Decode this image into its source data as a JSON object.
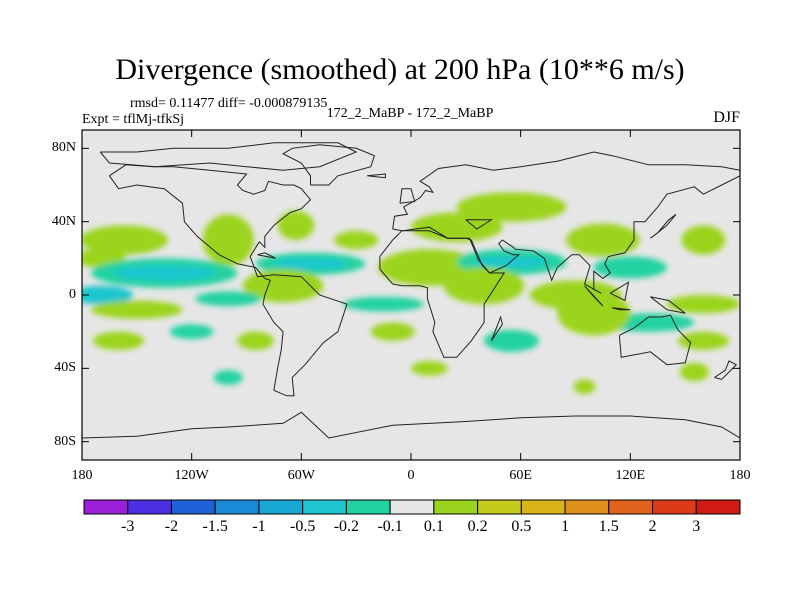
{
  "chart_data": {
    "type": "heatmap",
    "title": "Divergence (smoothed) at 200 hPa (10**6 m/s)",
    "stats_line": "rmsd= 0.11477 diff= -0.000879135",
    "left_label": "Expt = tflMj-tfkSj",
    "center_label": "172_2_MaBP - 172_2_MaBP",
    "right_label": "DJF",
    "x_ticks": [
      {
        "lon": -180,
        "label": "180"
      },
      {
        "lon": -120,
        "label": "120W"
      },
      {
        "lon": -60,
        "label": "60W"
      },
      {
        "lon": 0,
        "label": "0"
      },
      {
        "lon": 60,
        "label": "60E"
      },
      {
        "lon": 120,
        "label": "120E"
      },
      {
        "lon": 180,
        "label": "180"
      }
    ],
    "y_ticks": [
      {
        "lat": 80,
        "label": "80N"
      },
      {
        "lat": 40,
        "label": "40N"
      },
      {
        "lat": 0,
        "label": "0"
      },
      {
        "lat": -40,
        "label": "40S"
      },
      {
        "lat": -80,
        "label": "80S"
      }
    ],
    "xlim": [
      -180,
      180
    ],
    "ylim": [
      -90,
      90
    ],
    "colorbar": {
      "levels": [
        "-3",
        "-2",
        "-1.5",
        "-1",
        "-0.5",
        "-0.2",
        "-0.1",
        "0.1",
        "0.2",
        "0.5",
        "1",
        "1.5",
        "2",
        "3"
      ],
      "colors": [
        "#9a1fd9",
        "#4a2fe0",
        "#1f62d8",
        "#1a8ad8",
        "#19a7d6",
        "#1fc6cf",
        "#22d2a2",
        "#e6e6e6",
        "#9bd41e",
        "#c4cc1b",
        "#d9b51a",
        "#e0901c",
        "#e0621c",
        "#dd3a18",
        "#d11a14"
      ]
    },
    "fields": [
      {
        "lon": -157,
        "lat": 30,
        "rx": 14,
        "ry": 5,
        "color": "#c4cc1b"
      },
      {
        "lon": -157,
        "lat": 30,
        "rx": 24,
        "ry": 8,
        "color": "#9bd41e"
      },
      {
        "lon": -170,
        "lat": 20,
        "rx": 14,
        "ry": 5,
        "color": "#9bd41e"
      },
      {
        "lon": -100,
        "lat": 30,
        "rx": 10,
        "ry": 10,
        "color": "#c4cc1b"
      },
      {
        "lon": -100,
        "lat": 30,
        "rx": 14,
        "ry": 14,
        "color": "#9bd41e"
      },
      {
        "lon": -30,
        "lat": 30,
        "rx": 12,
        "ry": 5,
        "color": "#9bd41e"
      },
      {
        "lon": -63,
        "lat": 38,
        "rx": 10,
        "ry": 8,
        "color": "#9bd41e"
      },
      {
        "lon": 55,
        "lat": 48,
        "rx": 30,
        "ry": 8,
        "color": "#9bd41e"
      },
      {
        "lon": 25,
        "lat": 37,
        "rx": 25,
        "ry": 8,
        "color": "#9bd41e"
      },
      {
        "lon": 105,
        "lat": 30,
        "rx": 12,
        "ry": 6,
        "color": "#c4cc1b"
      },
      {
        "lon": 105,
        "lat": 30,
        "rx": 20,
        "ry": 9,
        "color": "#9bd41e"
      },
      {
        "lon": 160,
        "lat": 30,
        "rx": 12,
        "ry": 8,
        "color": "#9bd41e"
      },
      {
        "lon": -170,
        "lat": 0,
        "rx": 18,
        "ry": 5,
        "color": "#1fc6cf"
      },
      {
        "lon": -135,
        "lat": 12,
        "rx": 40,
        "ry": 8,
        "color": "#22d2a2"
      },
      {
        "lon": -135,
        "lat": 12,
        "rx": 28,
        "ry": 4,
        "color": "#1fc6cf"
      },
      {
        "lon": -55,
        "lat": 17,
        "rx": 30,
        "ry": 6,
        "color": "#22d2a2"
      },
      {
        "lon": -55,
        "lat": 17,
        "rx": 20,
        "ry": 3,
        "color": "#1fc6cf"
      },
      {
        "lon": -70,
        "lat": 5,
        "rx": 14,
        "ry": 6,
        "color": "#c4cc1b"
      },
      {
        "lon": -70,
        "lat": 5,
        "rx": 22,
        "ry": 9,
        "color": "#9bd41e"
      },
      {
        "lon": 10,
        "lat": 15,
        "rx": 18,
        "ry": 7,
        "color": "#c4cc1b"
      },
      {
        "lon": 10,
        "lat": 15,
        "rx": 28,
        "ry": 10,
        "color": "#9bd41e"
      },
      {
        "lon": 55,
        "lat": 18,
        "rx": 30,
        "ry": 7,
        "color": "#22d2a2"
      },
      {
        "lon": 55,
        "lat": 18,
        "rx": 20,
        "ry": 3,
        "color": "#1fc6cf"
      },
      {
        "lon": 120,
        "lat": 15,
        "rx": 20,
        "ry": 6,
        "color": "#22d2a2"
      },
      {
        "lon": 40,
        "lat": 5,
        "rx": 14,
        "ry": 7,
        "color": "#c4cc1b"
      },
      {
        "lon": 40,
        "lat": 5,
        "rx": 22,
        "ry": 10,
        "color": "#9bd41e"
      },
      {
        "lon": 90,
        "lat": 0,
        "rx": 18,
        "ry": 6,
        "color": "#c4cc1b"
      },
      {
        "lon": 90,
        "lat": 0,
        "rx": 25,
        "ry": 8,
        "color": "#9bd41e"
      },
      {
        "lon": 160,
        "lat": -5,
        "rx": 20,
        "ry": 5,
        "color": "#9bd41e"
      },
      {
        "lon": -150,
        "lat": -8,
        "rx": 25,
        "ry": 5,
        "color": "#9bd41e"
      },
      {
        "lon": -100,
        "lat": -2,
        "rx": 18,
        "ry": 4,
        "color": "#22d2a2"
      },
      {
        "lon": -15,
        "lat": -5,
        "rx": 22,
        "ry": 4,
        "color": "#22d2a2"
      },
      {
        "lon": 130,
        "lat": -15,
        "rx": 25,
        "ry": 5,
        "color": "#22d2a2"
      },
      {
        "lon": -10,
        "lat": -20,
        "rx": 12,
        "ry": 5,
        "color": "#9bd41e"
      },
      {
        "lon": 55,
        "lat": -25,
        "rx": 15,
        "ry": 6,
        "color": "#22d2a2"
      },
      {
        "lon": 100,
        "lat": -10,
        "rx": 14,
        "ry": 8,
        "color": "#c4cc1b"
      },
      {
        "lon": 100,
        "lat": -10,
        "rx": 20,
        "ry": 12,
        "color": "#9bd41e"
      },
      {
        "lon": 160,
        "lat": -25,
        "rx": 14,
        "ry": 5,
        "color": "#9bd41e"
      },
      {
        "lon": -160,
        "lat": -25,
        "rx": 14,
        "ry": 5,
        "color": "#9bd41e"
      },
      {
        "lon": -120,
        "lat": -20,
        "rx": 12,
        "ry": 4,
        "color": "#22d2a2"
      },
      {
        "lon": -85,
        "lat": -25,
        "rx": 10,
        "ry": 5,
        "color": "#9bd41e"
      },
      {
        "lon": -100,
        "lat": -45,
        "rx": 8,
        "ry": 4,
        "color": "#22d2a2"
      },
      {
        "lon": 10,
        "lat": -40,
        "rx": 10,
        "ry": 4,
        "color": "#9bd41e"
      },
      {
        "lon": 95,
        "lat": -50,
        "rx": 6,
        "ry": 4,
        "color": "#9bd41e"
      },
      {
        "lon": 155,
        "lat": -42,
        "rx": 8,
        "ry": 5,
        "color": "#9bd41e"
      }
    ],
    "coastlines": [
      [
        [
          -170,
          78
        ],
        [
          -150,
          78
        ],
        [
          -130,
          80
        ],
        [
          -100,
          80
        ],
        [
          -75,
          83
        ],
        [
          -40,
          83
        ],
        [
          -30,
          78
        ],
        [
          -50,
          70
        ],
        [
          -70,
          68
        ],
        [
          -90,
          70
        ],
        [
          -110,
          72
        ],
        [
          -140,
          70
        ],
        [
          -165,
          72
        ],
        [
          -170,
          78
        ]
      ],
      [
        [
          -165,
          65
        ],
        [
          -160,
          58
        ],
        [
          -150,
          60
        ],
        [
          -135,
          58
        ],
        [
          -125,
          50
        ],
        [
          -124,
          40
        ],
        [
          -117,
          32
        ],
        [
          -105,
          22
        ],
        [
          -95,
          17
        ],
        [
          -85,
          15
        ],
        [
          -80,
          9
        ],
        [
          -77,
          8
        ],
        [
          -80,
          0
        ],
        [
          -81,
          -5
        ],
        [
          -75,
          -15
        ],
        [
          -70,
          -20
        ],
        [
          -71,
          -30
        ],
        [
          -73,
          -40
        ],
        [
          -75,
          -52
        ],
        [
          -68,
          -55
        ],
        [
          -64,
          -55
        ],
        [
          -65,
          -45
        ],
        [
          -58,
          -38
        ],
        [
          -48,
          -26
        ],
        [
          -40,
          -20
        ],
        [
          -35,
          -5
        ],
        [
          -50,
          0
        ],
        [
          -60,
          10
        ],
        [
          -75,
          11
        ],
        [
          -84,
          10
        ],
        [
          -88,
          21
        ],
        [
          -83,
          29
        ],
        [
          -80,
          26
        ],
        [
          -80,
          32
        ],
        [
          -75,
          38
        ],
        [
          -70,
          42
        ],
        [
          -66,
          45
        ],
        [
          -60,
          47
        ],
        [
          -55,
          52
        ],
        [
          -60,
          58
        ],
        [
          -64,
          60
        ],
        [
          -70,
          60
        ],
        [
          -78,
          62
        ],
        [
          -80,
          57
        ],
        [
          -86,
          55
        ],
        [
          -92,
          57
        ],
        [
          -95,
          60
        ],
        [
          -90,
          66
        ],
        [
          -110,
          68
        ],
        [
          -130,
          70
        ],
        [
          -141,
          70
        ],
        [
          -156,
          71
        ],
        [
          -165,
          65
        ]
      ],
      [
        [
          -10,
          36
        ],
        [
          -9,
          43
        ],
        [
          -2,
          44
        ],
        [
          -4,
          48
        ],
        [
          5,
          53
        ],
        [
          8,
          57
        ],
        [
          12,
          56
        ],
        [
          10,
          59
        ],
        [
          5,
          62
        ],
        [
          15,
          69
        ],
        [
          30,
          71
        ],
        [
          45,
          68
        ],
        [
          60,
          70
        ],
        [
          80,
          73
        ],
        [
          100,
          78
        ],
        [
          110,
          76
        ],
        [
          130,
          71
        ],
        [
          150,
          71
        ],
        [
          170,
          70
        ],
        [
          180,
          68
        ],
        [
          180,
          65
        ],
        [
          170,
          60
        ],
        [
          160,
          55
        ],
        [
          155,
          59
        ],
        [
          140,
          55
        ],
        [
          135,
          48
        ],
        [
          128,
          40
        ],
        [
          122,
          40
        ],
        [
          122,
          30
        ],
        [
          117,
          23
        ],
        [
          108,
          21
        ],
        [
          106,
          17
        ],
        [
          109,
          12
        ],
        [
          105,
          9
        ],
        [
          100,
          13
        ],
        [
          100,
          3
        ],
        [
          104,
          1
        ],
        [
          95,
          6
        ],
        [
          98,
          16
        ],
        [
          92,
          22
        ],
        [
          88,
          22
        ],
        [
          80,
          15
        ],
        [
          77,
          8
        ],
        [
          73,
          20
        ],
        [
          67,
          24
        ],
        [
          57,
          25
        ],
        [
          56,
          26
        ],
        [
          50,
          30
        ],
        [
          48,
          28
        ],
        [
          51,
          24
        ],
        [
          56,
          22
        ],
        [
          59,
          22
        ],
        [
          52,
          16
        ],
        [
          43,
          12
        ],
        [
          39,
          16
        ],
        [
          33,
          30
        ],
        [
          30,
          31
        ],
        [
          20,
          31
        ],
        [
          10,
          35
        ],
        [
          -5,
          35
        ],
        [
          -10,
          36
        ]
      ],
      [
        [
          -17,
          21
        ],
        [
          -17,
          14
        ],
        [
          -10,
          6
        ],
        [
          -5,
          5
        ],
        [
          5,
          5
        ],
        [
          9,
          4
        ],
        [
          9,
          -2
        ],
        [
          13,
          -15
        ],
        [
          12,
          -20
        ],
        [
          18,
          -34
        ],
        [
          25,
          -34
        ],
        [
          33,
          -25
        ],
        [
          40,
          -15
        ],
        [
          40,
          -5
        ],
        [
          51,
          12
        ],
        [
          43,
          12
        ],
        [
          37,
          19
        ],
        [
          32,
          31
        ],
        [
          20,
          31
        ],
        [
          10,
          37
        ],
        [
          -5,
          35
        ],
        [
          -10,
          30
        ],
        [
          -17,
          21
        ]
      ],
      [
        [
          114,
          -22
        ],
        [
          122,
          -18
        ],
        [
          130,
          -12
        ],
        [
          137,
          -12
        ],
        [
          142,
          -11
        ],
        [
          146,
          -19
        ],
        [
          153,
          -26
        ],
        [
          150,
          -37
        ],
        [
          140,
          -38
        ],
        [
          131,
          -31
        ],
        [
          115,
          -34
        ],
        [
          114,
          -22
        ]
      ],
      [
        [
          -180,
          -78
        ],
        [
          -150,
          -77
        ],
        [
          -120,
          -73
        ],
        [
          -100,
          -72
        ],
        [
          -70,
          -70
        ],
        [
          -60,
          -64
        ],
        [
          -45,
          -78
        ],
        [
          -10,
          -71
        ],
        [
          30,
          -69
        ],
        [
          60,
          -67
        ],
        [
          90,
          -66
        ],
        [
          120,
          -66
        ],
        [
          150,
          -68
        ],
        [
          170,
          -72
        ],
        [
          180,
          -78
        ]
      ],
      [
        [
          -55,
          60
        ],
        [
          -45,
          60
        ],
        [
          -40,
          65
        ],
        [
          -22,
          70
        ],
        [
          -20,
          76
        ],
        [
          -30,
          80
        ],
        [
          -50,
          82
        ],
        [
          -65,
          80
        ],
        [
          -70,
          77
        ],
        [
          -60,
          72
        ],
        [
          -55,
          65
        ],
        [
          -55,
          60
        ]
      ],
      [
        [
          -6,
          50
        ],
        [
          2,
          51
        ],
        [
          0,
          58
        ],
        [
          -5,
          58
        ],
        [
          -6,
          50
        ]
      ],
      [
        [
          131,
          31
        ],
        [
          135,
          34
        ],
        [
          141,
          41
        ],
        [
          145,
          44
        ],
        [
          140,
          38
        ],
        [
          135,
          34
        ],
        [
          131,
          31
        ]
      ],
      [
        [
          95,
          5
        ],
        [
          105,
          -6
        ],
        [
          100,
          -1
        ],
        [
          95,
          5
        ]
      ],
      [
        [
          110,
          -7
        ],
        [
          114,
          -8
        ],
        [
          120,
          -8
        ],
        [
          110,
          -7
        ]
      ],
      [
        [
          109,
          1
        ],
        [
          119,
          7
        ],
        [
          117,
          -3
        ],
        [
          109,
          1
        ]
      ],
      [
        [
          131,
          -1
        ],
        [
          141,
          -3
        ],
        [
          150,
          -10
        ],
        [
          140,
          -8
        ],
        [
          131,
          -1
        ]
      ],
      [
        [
          44,
          -25
        ],
        [
          50,
          -16
        ],
        [
          49,
          -12
        ],
        [
          44,
          -25
        ]
      ],
      [
        [
          166,
          -45
        ],
        [
          172,
          -41
        ],
        [
          174,
          -36
        ],
        [
          178,
          -38
        ],
        [
          170,
          -46
        ],
        [
          166,
          -45
        ]
      ],
      [
        [
          -24,
          65
        ],
        [
          -14,
          66
        ],
        [
          -14,
          64
        ],
        [
          -24,
          65
        ]
      ],
      [
        [
          -84,
          22
        ],
        [
          -74,
          20
        ],
        [
          -80,
          23
        ],
        [
          -84,
          22
        ]
      ],
      [
        [
          30,
          41
        ],
        [
          36,
          36
        ],
        [
          44,
          41
        ],
        [
          30,
          41
        ]
      ]
    ]
  }
}
